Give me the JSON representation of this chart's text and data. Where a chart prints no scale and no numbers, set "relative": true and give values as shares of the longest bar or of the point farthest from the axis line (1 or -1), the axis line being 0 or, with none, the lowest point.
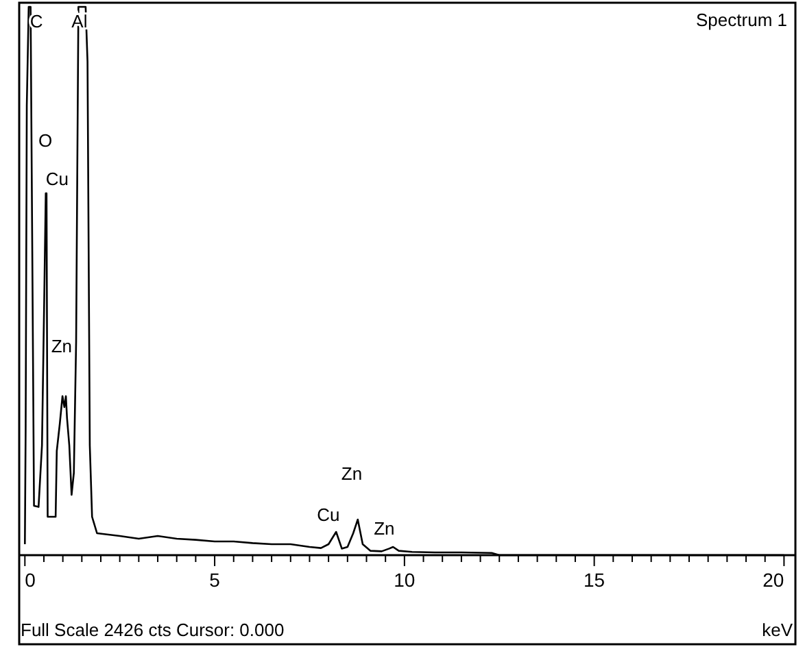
{
  "chart_data": {
    "type": "line",
    "title": "Spectrum 1",
    "xlabel": "keV",
    "relative": true,
    "tick_labels": "x",
    "grid": false,
    "marker": "none",
    "line_style": "solid",
    "xlim": [
      -0.15,
      20.3
    ],
    "xticks": [
      0,
      {
        "value": 0.5,
        "label": null
      },
      {
        "value": 1,
        "label": null
      },
      {
        "value": 1.5,
        "label": null
      },
      {
        "value": 2,
        "label": null
      },
      {
        "value": 2.5,
        "label": null
      },
      {
        "value": 3,
        "label": null
      },
      {
        "value": 3.5,
        "label": null
      },
      {
        "value": 4,
        "label": null
      },
      {
        "value": 4.5,
        "label": null
      },
      5,
      {
        "value": 5.5,
        "label": null
      },
      {
        "value": 6,
        "label": null
      },
      {
        "value": 6.5,
        "label": null
      },
      {
        "value": 7,
        "label": null
      },
      {
        "value": 7.5,
        "label": null
      },
      {
        "value": 8,
        "label": null
      },
      {
        "value": 8.5,
        "label": null
      },
      {
        "value": 9,
        "label": null
      },
      {
        "value": 9.5,
        "label": null
      },
      10,
      {
        "value": 10.5,
        "label": null
      },
      {
        "value": 11,
        "label": null
      },
      {
        "value": 11.5,
        "label": null
      },
      {
        "value": 12,
        "label": null
      },
      {
        "value": 12.5,
        "label": null
      },
      {
        "value": 13,
        "label": null
      },
      {
        "value": 13.5,
        "label": null
      },
      {
        "value": 14,
        "label": null
      },
      {
        "value": 14.5,
        "label": null
      },
      15,
      {
        "value": 15.5,
        "label": null
      },
      {
        "value": 16,
        "label": null
      },
      {
        "value": 16.5,
        "label": null
      },
      {
        "value": 17,
        "label": null
      },
      {
        "value": 17.5,
        "label": null
      },
      {
        "value": 18,
        "label": null
      },
      {
        "value": 18.5,
        "label": null
      },
      {
        "value": 19,
        "label": null
      },
      {
        "value": 19.5,
        "label": null
      },
      20
    ],
    "x": [
      0.0,
      0.02,
      0.05,
      0.1,
      0.15,
      0.2,
      0.24,
      0.36,
      0.45,
      0.51,
      0.55,
      0.57,
      0.6,
      0.69,
      0.81,
      0.84,
      0.92,
      0.99,
      1.04,
      1.08,
      1.11,
      1.17,
      1.23,
      1.29,
      1.35,
      1.41,
      1.6,
      1.65,
      1.71,
      1.77,
      1.9,
      2.5,
      3.0,
      3.5,
      4.0,
      4.5,
      5.0,
      5.5,
      6.0,
      6.5,
      7.0,
      7.5,
      7.8,
      8.0,
      8.2,
      8.35,
      8.5,
      8.65,
      8.77,
      8.9,
      9.1,
      9.4,
      9.6,
      9.7,
      9.85,
      10.2,
      10.8,
      11.5,
      12.3,
      12.5,
      13,
      15,
      20
    ],
    "series": [
      {
        "color": "#000000",
        "values": [
          0.02,
          0.23,
          0.82,
          1,
          1,
          0.5,
          0.09,
          0.088,
          0.2,
          0.47,
          0.66,
          0.66,
          0.07,
          0.07,
          0.07,
          0.19,
          0.24,
          0.29,
          0.27,
          0.29,
          0.25,
          0.2,
          0.11,
          0.15,
          0.39,
          1,
          1,
          0.9,
          0.2,
          0.07,
          0.04,
          0.035,
          0.03,
          0.035,
          0.03,
          0.028,
          0.025,
          0.025,
          0.022,
          0.02,
          0.02,
          0.015,
          0.013,
          0.02,
          0.0425,
          0.012,
          0.015,
          0.04,
          0.065,
          0.02,
          0.008,
          0.007,
          0.012,
          0.015,
          0.008,
          0.006,
          0.005,
          0.005,
          0.004,
          0,
          0,
          0,
          0
        ]
      }
    ],
    "annotations": [
      {
        "text": "C",
        "x": 0.1,
        "y": 1
      },
      {
        "text": "Al",
        "x": 1.41,
        "y": 1
      },
      {
        "text": "O",
        "x": 0.1755,
        "y": 0.745
      },
      {
        "text": "Cu",
        "x": 0.55,
        "y": 0.66
      },
      {
        "text": "Zn",
        "x": 0.585,
        "y": 0.37
      },
      {
        "text": "Zn",
        "x": 8.77,
        "y": 0.065
      },
      {
        "text": "Cu",
        "x": 8.2,
        "y": 0.0425
      },
      {
        "text": "Zn",
        "x": 9.7,
        "y": 0.015
      },
      "Full Scale 2426 cts Cursor: 0.000"
    ]
  }
}
